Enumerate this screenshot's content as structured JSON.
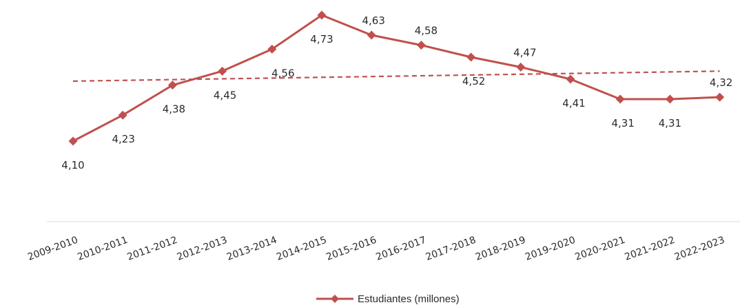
{
  "chart_data": {
    "type": "line",
    "categories": [
      "2009-2010",
      "2010-2011",
      "2011-2012",
      "2012-2013",
      "2013-2014",
      "2014-2015",
      "2015-2016",
      "2016-2017",
      "2017-2018",
      "2018-2019",
      "2019-2020",
      "2020-2021",
      "2021-2022",
      "2022-2023"
    ],
    "series": [
      {
        "name": "Estudiantes (millones)",
        "values": [
          4.1,
          4.23,
          4.38,
          4.45,
          4.56,
          4.73,
          4.63,
          4.58,
          4.52,
          4.47,
          4.41,
          4.31,
          4.31,
          4.32
        ],
        "labels": [
          "4,10",
          "4,23",
          "4,38",
          "4,45",
          "4,56",
          "4,73",
          "4,63",
          "4,58",
          "4,52",
          "4,47",
          "4,41",
          "4,31",
          "4,31",
          "4,32"
        ],
        "color": "#c0504d"
      }
    ],
    "trendline": {
      "style": "dashed",
      "color": "#c0504d",
      "start": 4.4,
      "end": 4.45
    },
    "legend": {
      "position": "bottom",
      "label": "Estudiantes (millones)"
    },
    "grid": false,
    "ylim": [
      3.85,
      4.75
    ]
  }
}
